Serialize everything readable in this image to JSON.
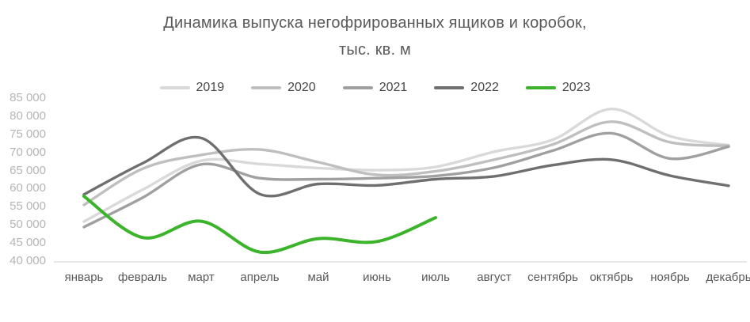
{
  "title": {
    "line1": "Динамика выпуска негофрированных ящиков и коробок,",
    "line2": "тыс. кв. м"
  },
  "chart_data": {
    "type": "line",
    "smooth": true,
    "grid": false,
    "legend_position": "top",
    "title": "Динамика выпуска негофрированных ящиков и коробок, тыс. кв. м",
    "xlabel": "",
    "ylabel": "",
    "ylim": [
      40000,
      85000
    ],
    "ytick_step": 5000,
    "ytick_labels": [
      "85 000",
      "80 000",
      "75 000",
      "70 000",
      "65 000",
      "60 000",
      "55 000",
      "50 000",
      "45 000",
      "40 000"
    ],
    "categories": [
      "январь",
      "февраль",
      "март",
      "апрель",
      "май",
      "июнь",
      "июль",
      "август",
      "сентябрь",
      "октябрь",
      "ноябрь",
      "декабрь"
    ],
    "series": [
      {
        "name": "2019",
        "color": "#d9d9d9",
        "values": [
          50900,
          59700,
          67700,
          66800,
          65700,
          65100,
          66000,
          70200,
          73500,
          82000,
          74500,
          72000
        ]
      },
      {
        "name": "2020",
        "color": "#bfbfbf",
        "values": [
          55500,
          65500,
          69300,
          70800,
          67300,
          63800,
          64800,
          68000,
          72200,
          78500,
          72800,
          71800
        ]
      },
      {
        "name": "2021",
        "color": "#a0a0a0",
        "values": [
          49400,
          57500,
          66700,
          62900,
          62600,
          62900,
          63500,
          65800,
          70500,
          75300,
          68300,
          71600
        ]
      },
      {
        "name": "2022",
        "color": "#6f6f6f",
        "values": [
          58400,
          67000,
          74000,
          58500,
          61300,
          60900,
          62600,
          63400,
          66500,
          68000,
          63600,
          60800
        ]
      },
      {
        "name": "2023",
        "color": "#3bb32a",
        "values": [
          57900,
          46500,
          51000,
          42500,
          46200,
          45400,
          52000
        ]
      }
    ]
  },
  "colors": {
    "axis_line": "#d9d9d9",
    "title_text": "#595959",
    "x_label_text": "#595959",
    "y_label_text": "#b5b5b5"
  }
}
